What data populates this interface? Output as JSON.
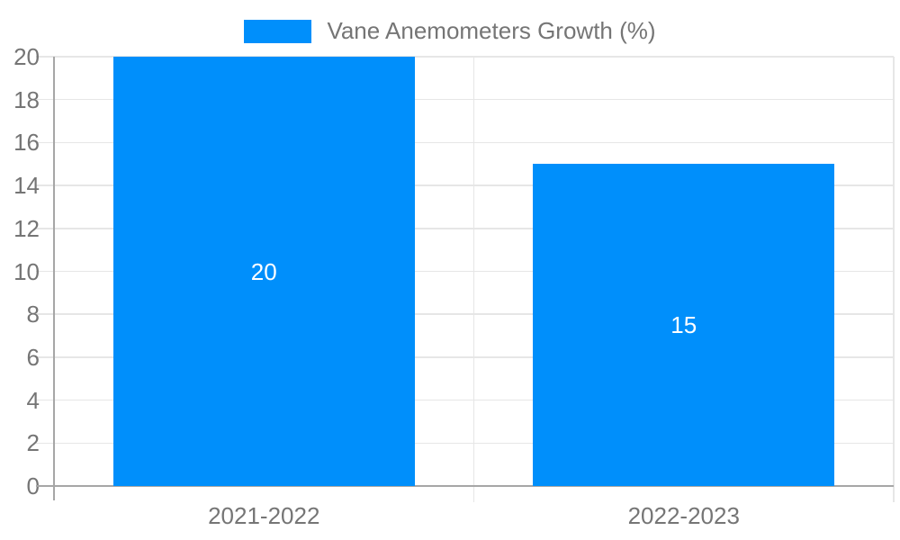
{
  "chart_data": {
    "type": "bar",
    "title": "",
    "legend": {
      "position": "top",
      "items": [
        {
          "label": "Vane Anemometers Growth (%)",
          "color": "#008FFB"
        }
      ]
    },
    "categories": [
      "2021-2022",
      "2022-2023"
    ],
    "series": [
      {
        "name": "Vane Anemometers Growth (%)",
        "values": [
          20,
          15
        ],
        "color": "#008FFB"
      }
    ],
    "data_labels": [
      "20",
      "15"
    ],
    "xlabel": "",
    "ylabel": "",
    "ylim": [
      0,
      20
    ],
    "yticks": [
      0,
      2,
      4,
      6,
      8,
      10,
      12,
      14,
      16,
      18,
      20
    ],
    "grid": true,
    "colors": {
      "bar": "#008FFB",
      "bar_label_text": "#ffffff",
      "axis_text": "#757575",
      "gridline": "#e6e6e6",
      "axis_line": "#a6a6a6",
      "background": "#ffffff"
    }
  }
}
